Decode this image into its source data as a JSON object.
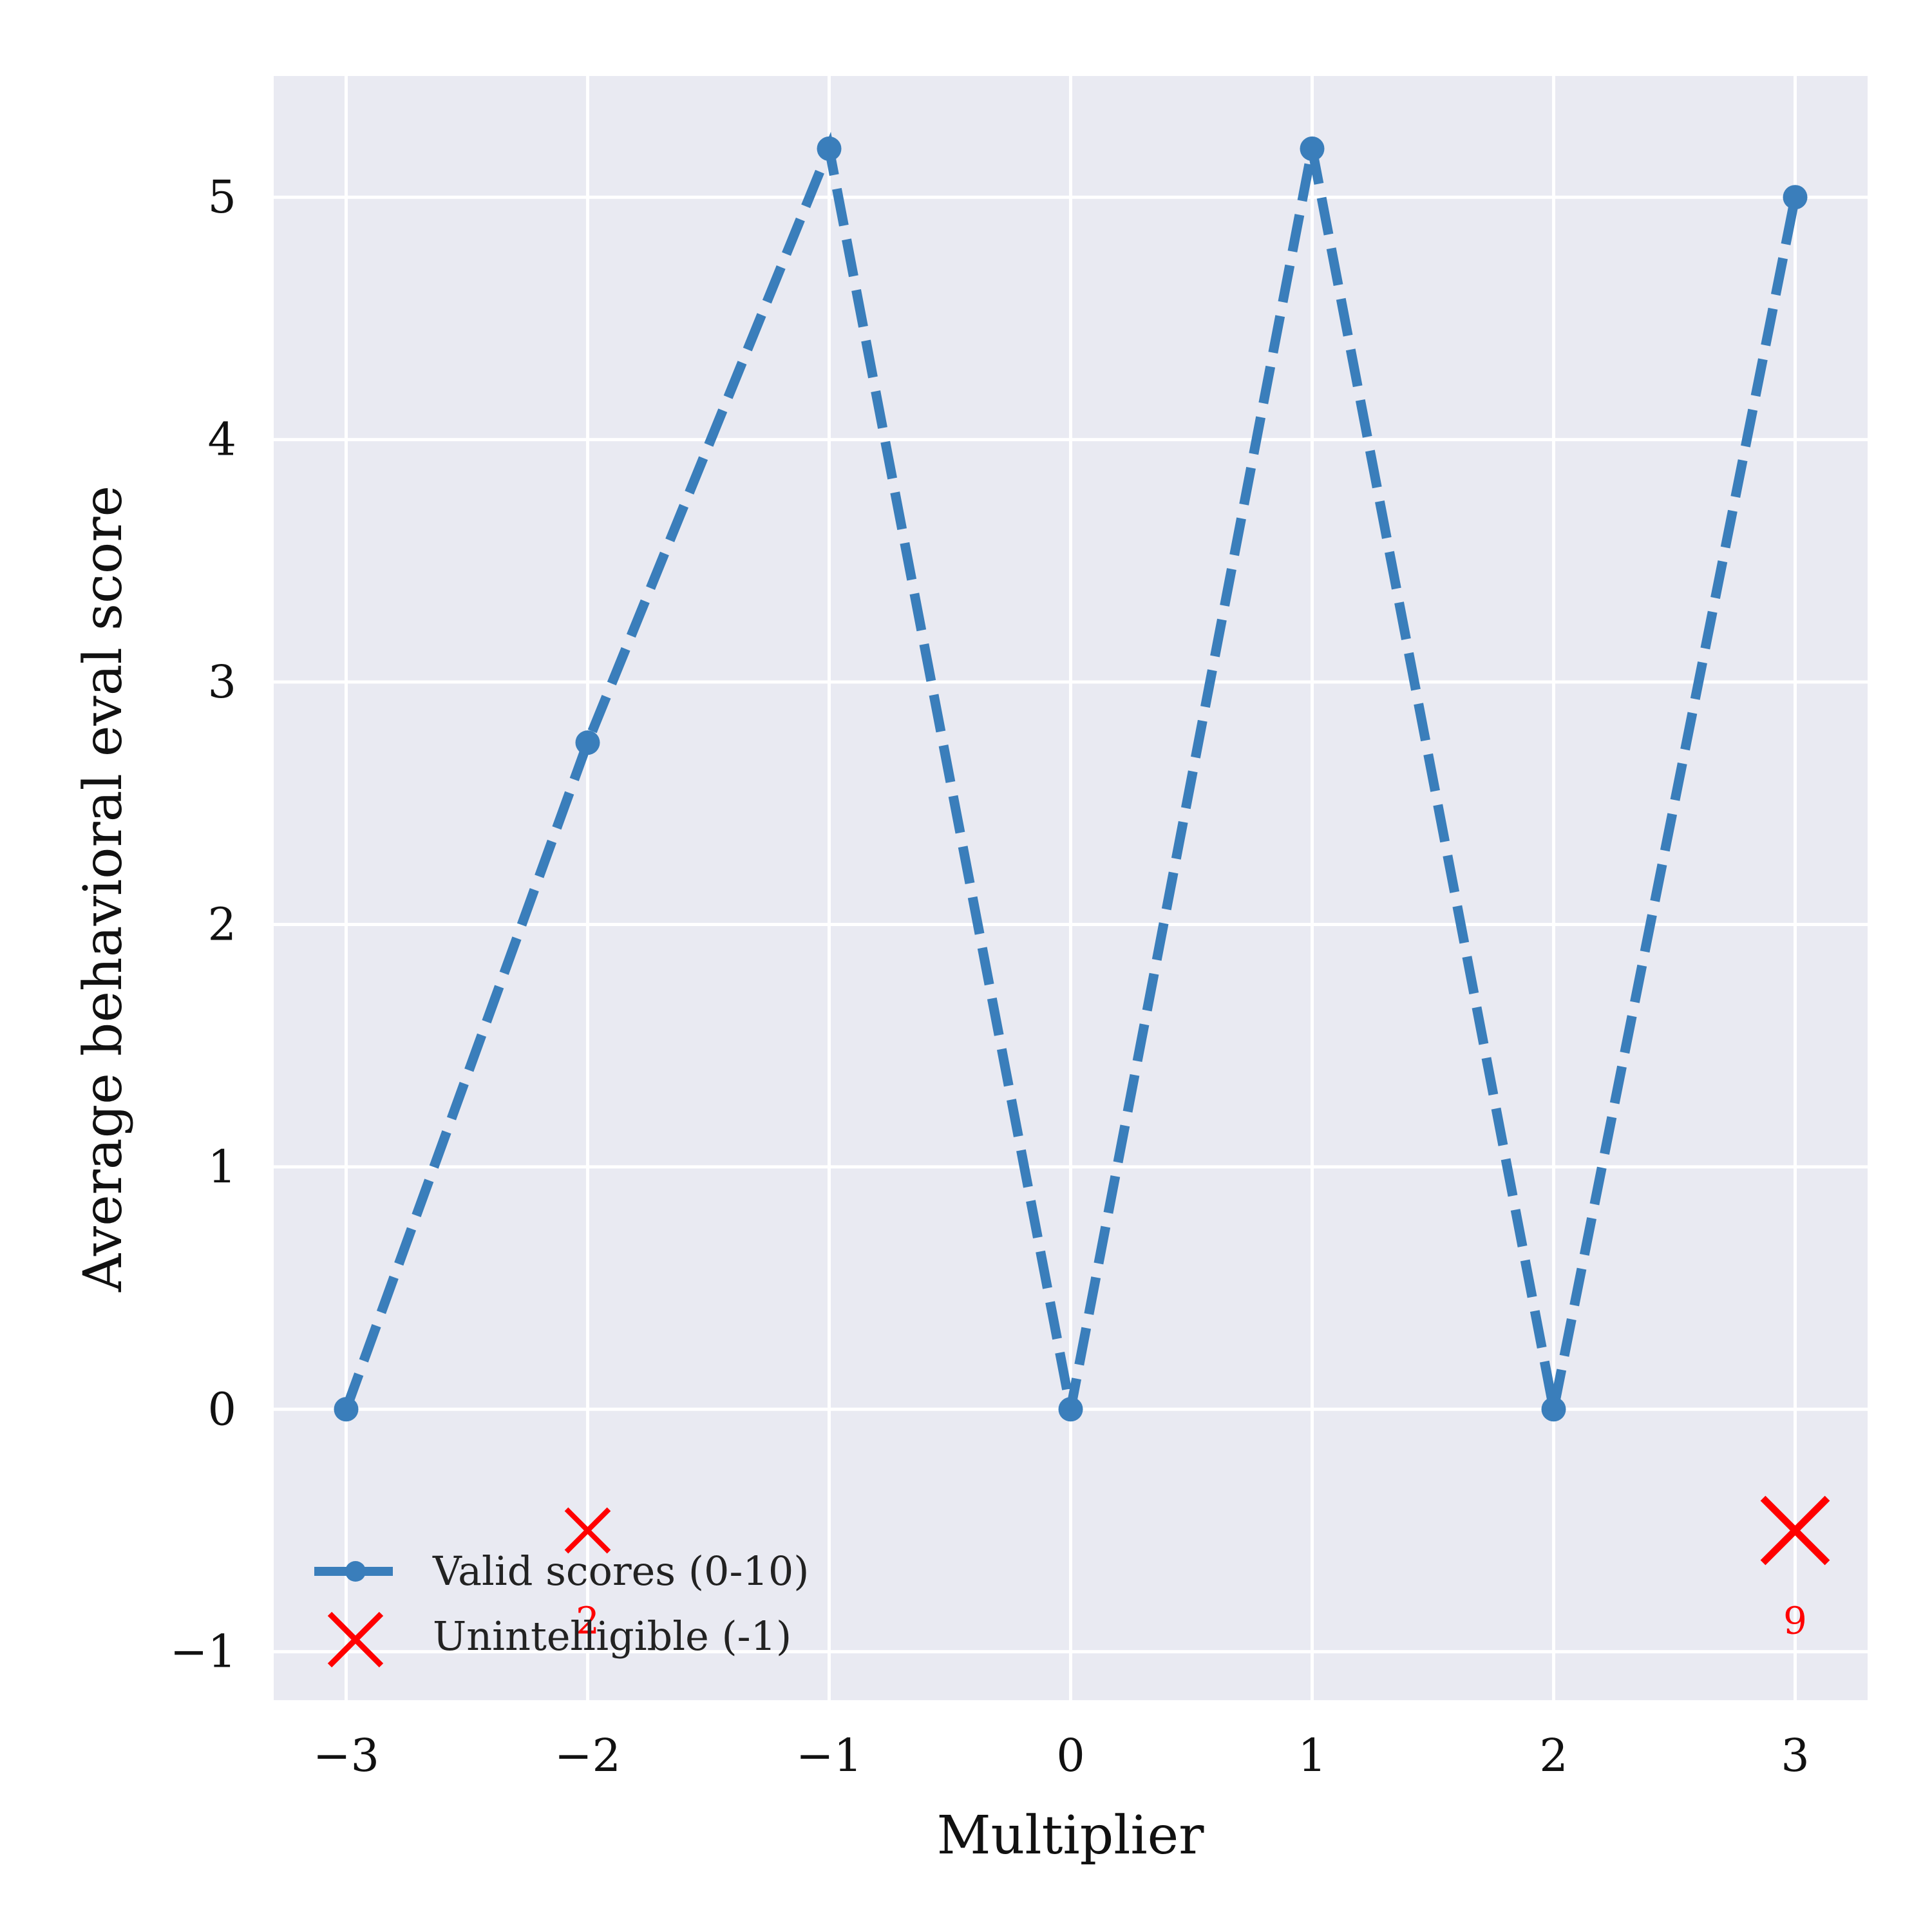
{
  "chart_data": {
    "type": "line",
    "xlabel": "Multiplier",
    "ylabel": "Average behavioral eval score",
    "xlim": [
      -3.3,
      3.3
    ],
    "ylim": [
      -1.2,
      5.5
    ],
    "xticks": [
      -3,
      -2,
      -1,
      0,
      1,
      2,
      3
    ],
    "xtick_labels": [
      "−3",
      "−2",
      "−1",
      "0",
      "1",
      "2",
      "3"
    ],
    "yticks": [
      -1,
      0,
      1,
      2,
      3,
      4,
      5
    ],
    "ytick_labels": [
      "−1",
      "0",
      "1",
      "2",
      "3",
      "4",
      "5"
    ],
    "grid": true,
    "legend_position": "lower-left",
    "series": [
      {
        "name": "Valid scores (0-10)",
        "style": "dashed-line-with-markers",
        "color": "#3a7ebb",
        "x": [
          -3,
          -2,
          -1,
          0,
          1,
          2,
          3
        ],
        "y": [
          0,
          2.75,
          5.2,
          0,
          5.2,
          0,
          5.0
        ]
      },
      {
        "name": "Unintelligible (-1)",
        "style": "x-markers",
        "color": "#ff0000",
        "x": [
          -2,
          3
        ],
        "y": [
          -0.5,
          -0.5
        ],
        "counts": [
          "2",
          "9"
        ]
      }
    ]
  }
}
